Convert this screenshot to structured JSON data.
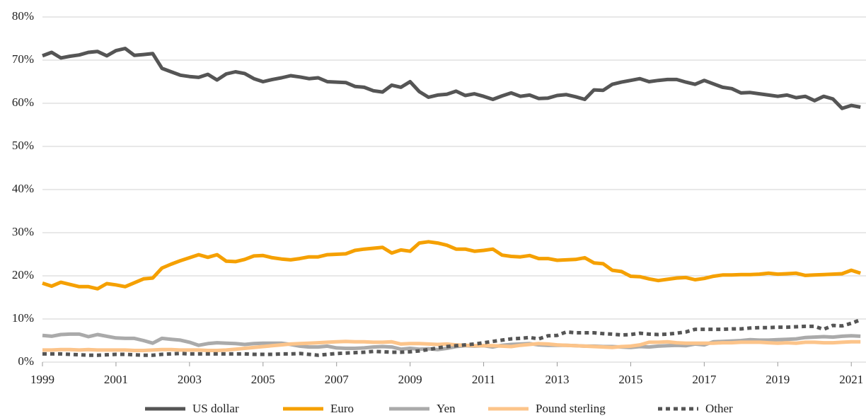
{
  "chart_data": {
    "type": "line",
    "x": [
      1999,
      1999.25,
      1999.5,
      1999.75,
      2000,
      2000.25,
      2000.5,
      2000.75,
      2001,
      2001.25,
      2001.5,
      2001.75,
      2002,
      2002.25,
      2002.5,
      2002.75,
      2003,
      2003.25,
      2003.5,
      2003.75,
      2004,
      2004.25,
      2004.5,
      2004.75,
      2005,
      2005.25,
      2005.5,
      2005.75,
      2006,
      2006.25,
      2006.5,
      2006.75,
      2007,
      2007.25,
      2007.5,
      2007.75,
      2008,
      2008.25,
      2008.5,
      2008.75,
      2009,
      2009.25,
      2009.5,
      2009.75,
      2010,
      2010.25,
      2010.5,
      2010.75,
      2011,
      2011.25,
      2011.5,
      2011.75,
      2012,
      2012.25,
      2012.5,
      2012.75,
      2013,
      2013.25,
      2013.5,
      2013.75,
      2014,
      2014.25,
      2014.5,
      2014.75,
      2015,
      2015.25,
      2015.5,
      2015.75,
      2016,
      2016.25,
      2016.5,
      2016.75,
      2017,
      2017.25,
      2017.5,
      2017.75,
      2018,
      2018.25,
      2018.5,
      2018.75,
      2019,
      2019.25,
      2019.5,
      2019.75,
      2020,
      2020.25,
      2020.5,
      2020.75,
      2021,
      2021.25
    ],
    "series": [
      {
        "name": "US dollar",
        "color": "#555555",
        "line_style": "solid",
        "values": [
          71,
          71.8,
          70.5,
          70.9,
          71.2,
          71.8,
          72,
          71,
          72.2,
          72.7,
          71.1,
          71.3,
          71.5,
          68.1,
          67.3,
          66.5,
          66.2,
          66,
          66.7,
          65.4,
          66.8,
          67.3,
          66.9,
          65.7,
          65,
          65.5,
          65.9,
          66.4,
          66.1,
          65.7,
          65.9,
          65,
          64.9,
          64.8,
          63.9,
          63.7,
          62.9,
          62.6,
          64.2,
          63.7,
          65,
          62.7,
          61.4,
          61.9,
          62.1,
          62.8,
          61.8,
          62.2,
          61.6,
          60.9,
          61.7,
          62.4,
          61.6,
          61.9,
          61.1,
          61.2,
          61.8,
          62,
          61.5,
          60.9,
          63.1,
          63,
          64.4,
          64.9,
          65.3,
          65.7,
          65,
          65.3,
          65.5,
          65.5,
          64.9,
          64.4,
          65.3,
          64.5,
          63.7,
          63.4,
          62.4,
          62.5,
          62.2,
          61.9,
          61.6,
          61.9,
          61.3,
          61.6,
          60.6,
          61.6,
          61,
          58.8,
          59.5,
          59.1
        ]
      },
      {
        "name": "Euro",
        "color": "#f5a000",
        "line_style": "solid",
        "values": [
          18.3,
          17.6,
          18.5,
          18,
          17.5,
          17.5,
          17,
          18.2,
          17.9,
          17.5,
          18.4,
          19.3,
          19.5,
          21.8,
          22.7,
          23.5,
          24.2,
          24.9,
          24.3,
          24.9,
          23.4,
          23.3,
          23.8,
          24.6,
          24.7,
          24.2,
          23.9,
          23.7,
          24,
          24.4,
          24.4,
          24.9,
          25,
          25.1,
          25.9,
          26.2,
          26.4,
          26.6,
          25.3,
          26,
          25.7,
          27.6,
          27.9,
          27.6,
          27.1,
          26.2,
          26.2,
          25.7,
          25.9,
          26.2,
          24.8,
          24.5,
          24.4,
          24.7,
          24,
          24,
          23.6,
          23.7,
          23.8,
          24.2,
          23,
          22.8,
          21.3,
          21,
          19.9,
          19.8,
          19.3,
          18.9,
          19.2,
          19.5,
          19.6,
          19.1,
          19.4,
          19.9,
          20.2,
          20.2,
          20.3,
          20.3,
          20.4,
          20.6,
          20.4,
          20.5,
          20.6,
          20.1,
          20.2,
          20.3,
          20.4,
          20.5,
          21.3,
          20.6
        ]
      },
      {
        "name": "Yen",
        "color": "#aaaaaa",
        "line_style": "solid",
        "values": [
          6.2,
          6,
          6.4,
          6.5,
          6.5,
          5.9,
          6.4,
          6,
          5.6,
          5.5,
          5.5,
          5,
          4.4,
          5.5,
          5.3,
          5.1,
          4.6,
          3.9,
          4.3,
          4.5,
          4.4,
          4.3,
          4.1,
          4.3,
          4.4,
          4.4,
          4.4,
          4.1,
          3.7,
          3.5,
          3.5,
          3.7,
          3.3,
          3.2,
          3.2,
          3.3,
          3.5,
          3.6,
          3.5,
          3,
          3.2,
          3,
          3.1,
          2.9,
          3.2,
          3.6,
          3.8,
          3.7,
          3.8,
          3.5,
          3.9,
          4.1,
          4.2,
          4.3,
          4,
          3.9,
          3.9,
          3.9,
          3.8,
          3.7,
          3.7,
          3.6,
          3.6,
          3.5,
          3.4,
          3.6,
          3.5,
          3.7,
          3.8,
          3.9,
          3.8,
          4.2,
          4,
          4.7,
          4.8,
          4.9,
          5,
          5.2,
          5.1,
          5.1,
          5.2,
          5.3,
          5.4,
          5.7,
          5.8,
          5.9,
          5.8,
          6,
          6.1,
          6
        ]
      },
      {
        "name": "Pound sterling",
        "color": "#fcc48a",
        "line_style": "solid",
        "values": [
          2.8,
          2.8,
          2.9,
          2.9,
          2.8,
          2.9,
          2.8,
          2.8,
          2.8,
          2.8,
          2.7,
          2.7,
          2.8,
          2.9,
          2.9,
          2.8,
          2.8,
          2.8,
          2.7,
          2.7,
          2.8,
          3,
          3.2,
          3.4,
          3.6,
          3.8,
          4,
          4.2,
          4.3,
          4.4,
          4.5,
          4.6,
          4.7,
          4.8,
          4.7,
          4.7,
          4.6,
          4.6,
          4.7,
          4.2,
          4.3,
          4.3,
          4.2,
          4.1,
          4.2,
          4,
          3.9,
          3.8,
          3.8,
          3.8,
          3.7,
          3.6,
          3.9,
          4.1,
          4.3,
          4.2,
          4,
          3.9,
          3.8,
          3.7,
          3.6,
          3.5,
          3.4,
          3.6,
          3.7,
          4,
          4.6,
          4.6,
          4.7,
          4.5,
          4.4,
          4.4,
          4.4,
          4.4,
          4.5,
          4.5,
          4.6,
          4.6,
          4.6,
          4.5,
          4.4,
          4.5,
          4.4,
          4.6,
          4.6,
          4.5,
          4.5,
          4.6,
          4.7,
          4.7
        ]
      },
      {
        "name": "Other",
        "color": "#555555",
        "line_style": "dotted",
        "values": [
          1.9,
          1.9,
          1.9,
          1.8,
          1.7,
          1.6,
          1.6,
          1.7,
          1.8,
          1.8,
          1.7,
          1.6,
          1.6,
          1.8,
          1.9,
          2,
          1.9,
          1.9,
          1.9,
          1.9,
          1.9,
          1.9,
          1.9,
          1.8,
          1.8,
          1.8,
          1.9,
          1.9,
          2,
          1.8,
          1.6,
          1.8,
          2,
          2.1,
          2.2,
          2.3,
          2.5,
          2.4,
          2.3,
          2.3,
          2.4,
          2.6,
          2.9,
          3.3,
          3.6,
          3.8,
          4,
          4.2,
          4.5,
          4.8,
          5.1,
          5.4,
          5.5,
          5.7,
          5.4,
          6.1,
          6.2,
          7,
          6.8,
          6.8,
          6.8,
          6.6,
          6.5,
          6.3,
          6.4,
          6.7,
          6.5,
          6.4,
          6.5,
          6.7,
          7,
          7.6,
          7.6,
          7.6,
          7.6,
          7.7,
          7.7,
          7.9,
          8,
          8,
          8.1,
          8.1,
          8.2,
          8.3,
          8.3,
          7.6,
          8.5,
          8.4,
          9,
          9.8
        ]
      }
    ],
    "xlim": [
      1999,
      2021.4
    ],
    "xticks": [
      1999,
      2001,
      2003,
      2005,
      2007,
      2009,
      2011,
      2013,
      2015,
      2017,
      2019,
      2021
    ],
    "ylim": [
      0,
      80
    ],
    "yticks": [
      {
        "value": 0,
        "label": "0%"
      },
      {
        "value": 10,
        "label": "10%"
      },
      {
        "value": 20,
        "label": "20%"
      },
      {
        "value": 30,
        "label": "30%"
      },
      {
        "value": 40,
        "label": "40%"
      },
      {
        "value": 50,
        "label": "50%"
      },
      {
        "value": 60,
        "label": "60%"
      },
      {
        "value": 70,
        "label": "70%"
      },
      {
        "value": 80,
        "label": "80%"
      }
    ],
    "grid": true,
    "legend": "bottom"
  }
}
